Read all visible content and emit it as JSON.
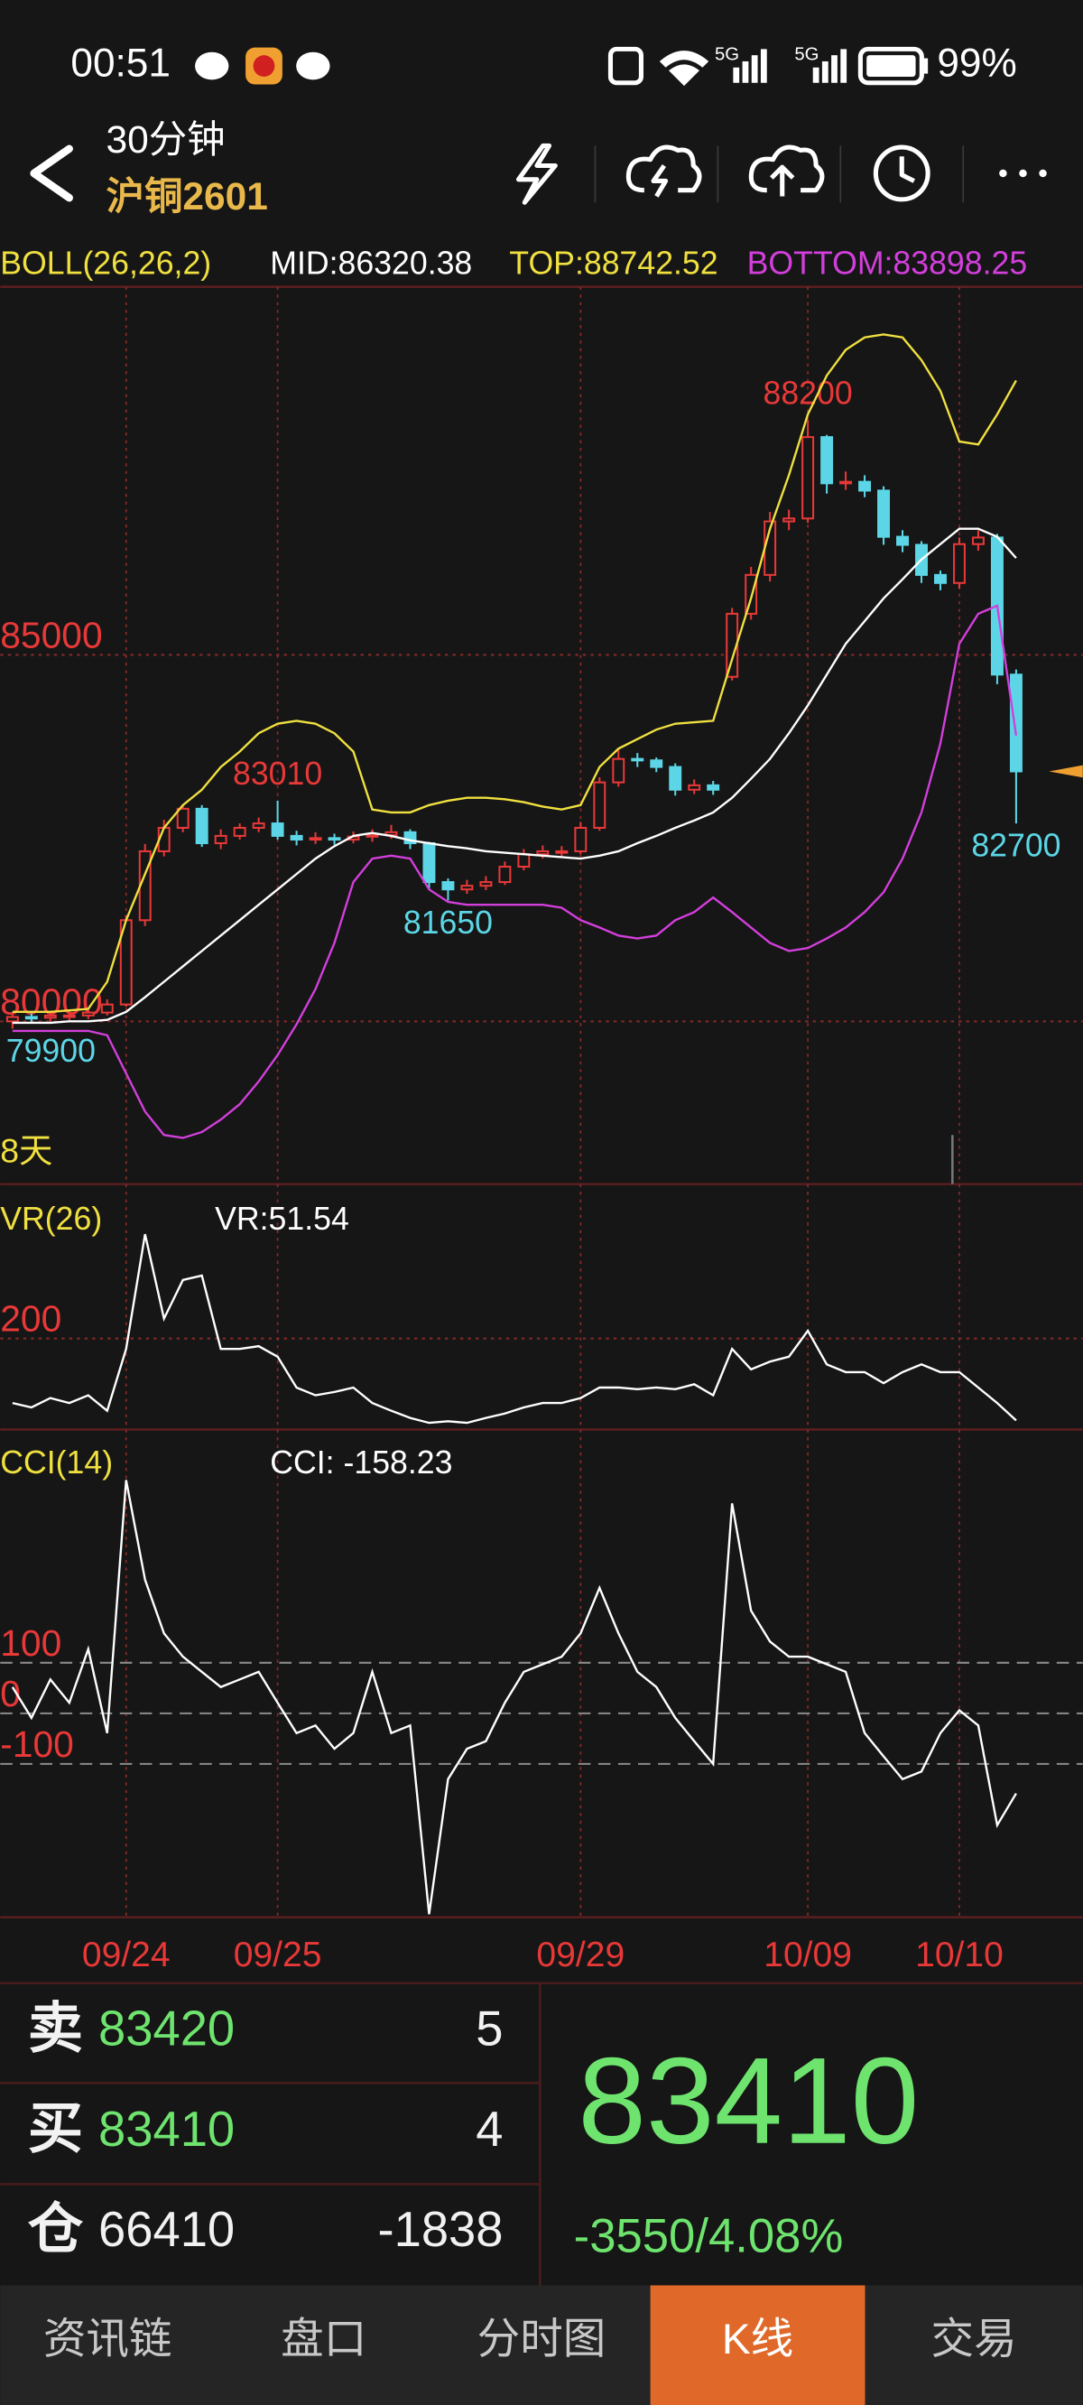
{
  "status_bar": {
    "time": "00:51",
    "network": [
      "5G",
      "5G"
    ],
    "battery": "99%"
  },
  "header": {
    "period": "30分钟",
    "symbol": "沪铜2601"
  },
  "chart_data": [
    {
      "type": "candlestick",
      "title": "BOLL(26,26,2)",
      "categories": [
        null,
        null,
        null,
        null,
        null,
        null,
        "09/24",
        null,
        null,
        null,
        null,
        null,
        null,
        null,
        "09/25",
        null,
        null,
        null,
        null,
        null,
        null,
        null,
        null,
        null,
        null,
        null,
        null,
        null,
        null,
        null,
        "09/29",
        null,
        null,
        null,
        null,
        null,
        null,
        null,
        null,
        null,
        null,
        null,
        "10/09",
        null,
        null,
        null,
        null,
        null,
        null,
        null,
        "10/10",
        null,
        null,
        null
      ],
      "open": [
        80000,
        80060,
        80050,
        80080,
        80080,
        80120,
        80230,
        81380,
        82320,
        82640,
        82900,
        82430,
        82530,
        82640,
        82700,
        82530,
        82480,
        82500,
        82480,
        82520,
        82540,
        82580,
        82430,
        81900,
        81800,
        81850,
        81900,
        82110,
        82280,
        82320,
        82320,
        82640,
        83260,
        83580,
        83560,
        83470,
        83160,
        83220,
        84700,
        85560,
        86090,
        86820,
        86860,
        87970,
        87340,
        87360,
        87240,
        86610,
        86500,
        86090,
        85980,
        86510,
        86600,
        84730
      ],
      "high": [
        80120,
        80110,
        80130,
        80140,
        80180,
        80300,
        81450,
        82420,
        82750,
        82950,
        82950,
        82620,
        82700,
        82780,
        83010,
        82600,
        82580,
        82560,
        82590,
        82620,
        82680,
        82620,
        82450,
        81950,
        81930,
        81980,
        82180,
        82350,
        82400,
        82390,
        82720,
        83330,
        83700,
        83660,
        83600,
        83520,
        83300,
        83280,
        85640,
        86200,
        86950,
        86980,
        88200,
        88000,
        87500,
        87450,
        87300,
        86700,
        86550,
        86150,
        86600,
        86700,
        86650,
        84800
      ],
      "low": [
        79900,
        79980,
        80000,
        80010,
        80030,
        80080,
        80200,
        81300,
        82250,
        82580,
        82380,
        82350,
        82480,
        82580,
        82480,
        82400,
        82420,
        82410,
        82430,
        82450,
        82490,
        82350,
        81800,
        81650,
        81740,
        81790,
        81860,
        82060,
        82220,
        82250,
        82280,
        82600,
        83200,
        83470,
        83400,
        83080,
        83100,
        83090,
        84650,
        85480,
        86000,
        86700,
        86800,
        87200,
        87250,
        87150,
        86500,
        86400,
        85980,
        85880,
        85900,
        86420,
        84600,
        82700
      ],
      "close": [
        80060,
        80050,
        80080,
        80080,
        80120,
        80230,
        81380,
        82320,
        82640,
        82900,
        82430,
        82530,
        82640,
        82700,
        82530,
        82480,
        82500,
        82480,
        82520,
        82540,
        82580,
        82430,
        81900,
        81800,
        81850,
        81900,
        82110,
        82280,
        82320,
        82320,
        82640,
        83260,
        83580,
        83560,
        83470,
        83160,
        83220,
        83160,
        85560,
        86090,
        86820,
        86860,
        87970,
        87340,
        87360,
        87240,
        86610,
        86500,
        86090,
        85980,
        86510,
        86600,
        84730,
        83410
      ],
      "up_color": "#e83838",
      "down_color": "#5cd6e6",
      "series": [
        {
          "name": "MID:86320.38",
          "color": "#ffffff",
          "values": [
            79980,
            79980,
            79980,
            80000,
            80000,
            80020,
            80130,
            80330,
            80540,
            80750,
            80960,
            81170,
            81380,
            81590,
            81800,
            82010,
            82220,
            82390,
            82530,
            82570,
            82530,
            82470,
            82430,
            82390,
            82360,
            82320,
            82300,
            82280,
            82260,
            82240,
            82220,
            82260,
            82320,
            82430,
            82530,
            82640,
            82740,
            82850,
            83050,
            83310,
            83580,
            83930,
            84310,
            84730,
            85150,
            85460,
            85770,
            86030,
            86300,
            86510,
            86720,
            86720,
            86610,
            86320.38
          ]
        },
        {
          "name": "TOP:88742.52",
          "color": "#f0e040",
          "values": [
            80130,
            80130,
            80130,
            80150,
            80170,
            80540,
            81380,
            82010,
            82640,
            82950,
            83160,
            83470,
            83680,
            83930,
            84060,
            84100,
            84060,
            83930,
            83680,
            82890,
            82850,
            82850,
            82950,
            83010,
            83050,
            83050,
            83030,
            82990,
            82930,
            82890,
            82950,
            83470,
            83720,
            83850,
            83980,
            84060,
            84080,
            84100,
            84940,
            85770,
            86720,
            87450,
            88280,
            88810,
            89160,
            89330,
            89370,
            89330,
            89020,
            88600,
            87910,
            87870,
            88280,
            88742.52
          ]
        },
        {
          "name": "BOTTOM:83898.25",
          "color": "#d33fdc",
          "values": [
            79870,
            79870,
            79870,
            79870,
            79870,
            79810,
            79290,
            78770,
            78450,
            78410,
            78490,
            78660,
            78870,
            79180,
            79540,
            79960,
            80440,
            81070,
            81900,
            82220,
            82260,
            82220,
            81800,
            81630,
            81590,
            81590,
            81590,
            81590,
            81590,
            81550,
            81380,
            81280,
            81170,
            81130,
            81170,
            81380,
            81490,
            81690,
            81490,
            81280,
            81070,
            80960,
            81000,
            81130,
            81280,
            81490,
            81760,
            82220,
            82850,
            83790,
            85150,
            85560,
            85670,
            83898.25
          ]
        }
      ],
      "ylim": [
        77780,
        90020
      ],
      "yticks": [
        80000,
        85000
      ],
      "grid": true,
      "grid_color": "#8a2a2a",
      "footnote": "8天"
    },
    {
      "type": "line",
      "title": "VR(26)",
      "series": [
        {
          "name": "VR:51.54",
          "color": "#ffffff",
          "values": [
            83,
            75,
            92,
            83,
            97,
            69,
            181,
            389,
            236,
            306,
            314,
            181,
            181,
            186,
            167,
            111,
            97,
            103,
            111,
            83,
            69,
            56,
            47,
            50,
            47,
            56,
            64,
            75,
            83,
            83,
            92,
            111,
            111,
            108,
            111,
            108,
            117,
            97,
            181,
            144,
            158,
            167,
            214,
            153,
            139,
            139,
            119,
            139,
            153,
            139,
            139,
            111,
            83,
            51.54
          ]
        }
      ],
      "ylim": [
        35,
        477
      ],
      "yticks": [
        200
      ],
      "grid": true,
      "grid_color": "#8a2a2a"
    },
    {
      "type": "line",
      "title": "CCI(14)",
      "series": [
        {
          "name": "CCI: -158.23",
          "color": "#ffffff",
          "values": [
            52,
            -9,
            67,
            21,
            127,
            -39,
            461,
            264,
            158,
            112,
            82,
            52,
            67,
            82,
            21,
            -39,
            -24,
            -70,
            -39,
            82,
            -39,
            -24,
            -397,
            -130,
            -70,
            -55,
            21,
            82,
            97,
            112,
            158,
            248,
            158,
            82,
            52,
            -9,
            -55,
            -100,
            415,
            203,
            142,
            112,
            112,
            97,
            82,
            -39,
            -85,
            -130,
            -115,
            -39,
            6,
            -24,
            -221,
            -158.23
          ]
        }
      ],
      "ylim": [
        -403,
        561
      ],
      "yticks": [
        -100,
        0,
        100
      ],
      "grid": true,
      "grid_color": "#8a8a8a"
    }
  ],
  "quote": {
    "rows": [
      {
        "label": "卖",
        "price": 83420,
        "volume": 5
      },
      {
        "label": "买",
        "price": 83410,
        "volume": 4
      },
      {
        "label": "仓",
        "price": 66410,
        "volume": -1838
      }
    ],
    "last": 83410,
    "change": "-3550/4.08%"
  },
  "tabs": [
    "资讯链",
    "盘口",
    "分时图",
    "K线",
    "交易"
  ],
  "active_tab": 3
}
